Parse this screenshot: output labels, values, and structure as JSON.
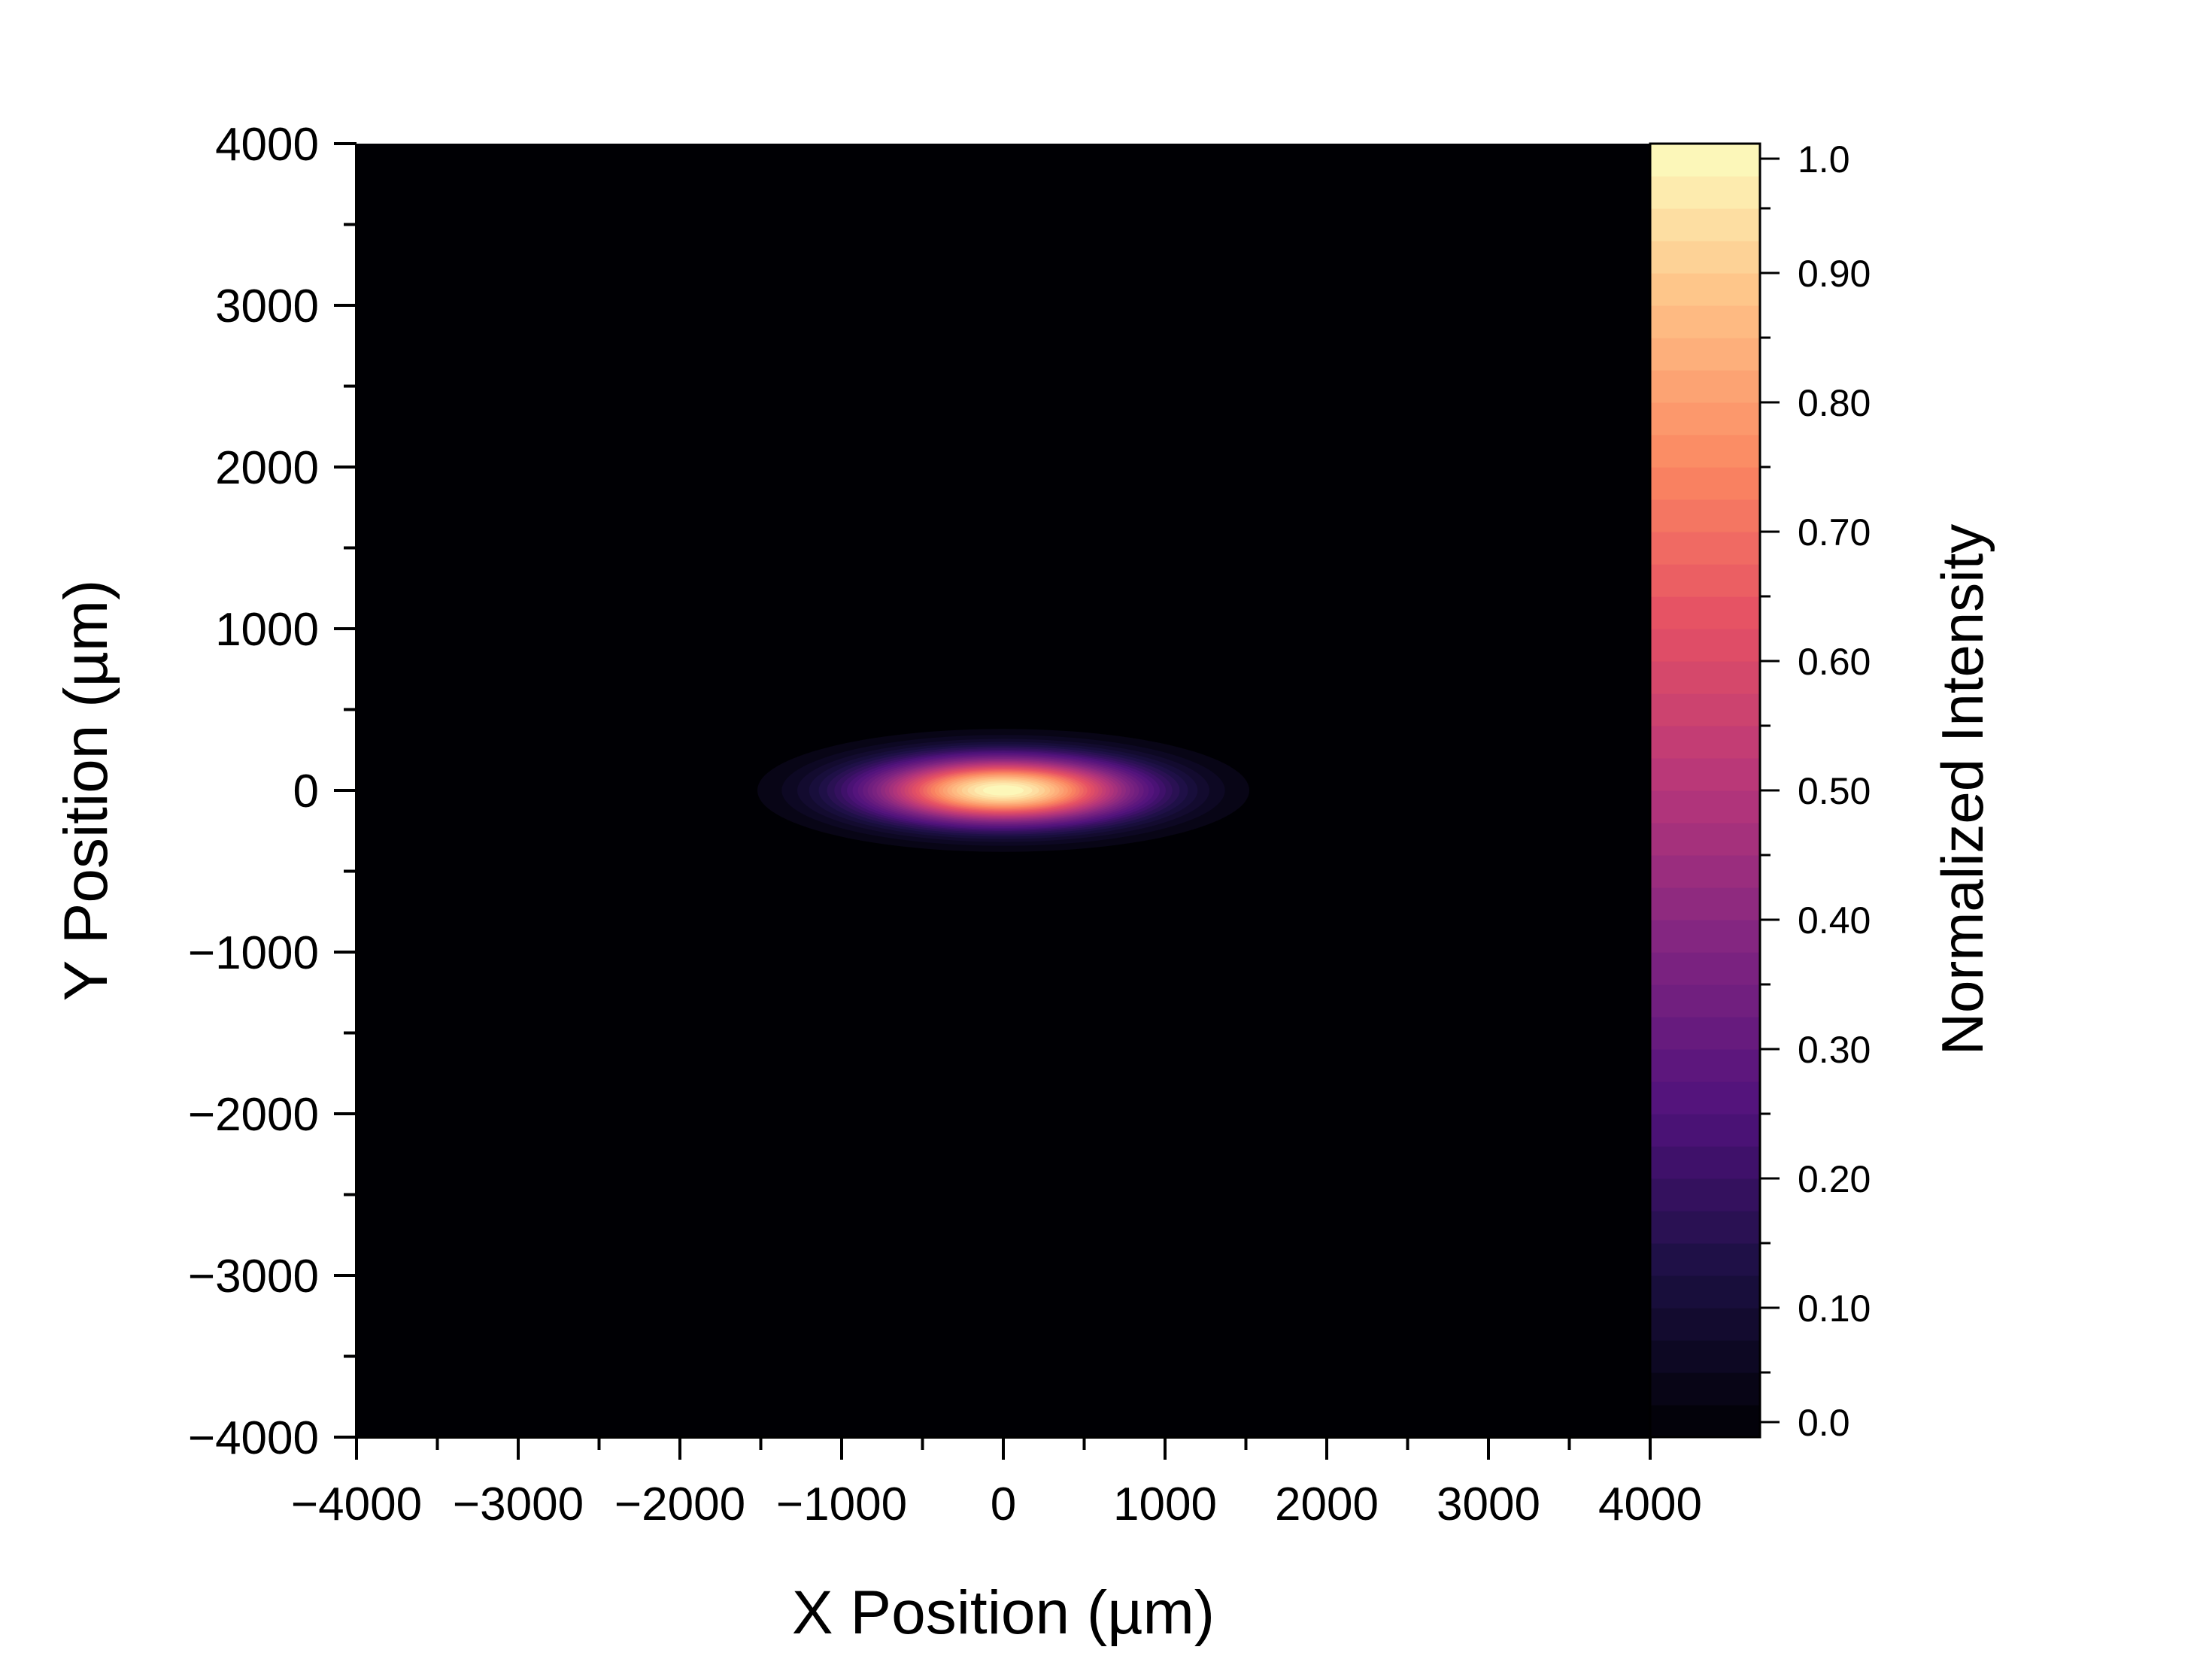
{
  "chart_data": {
    "type": "heatmap",
    "title": "",
    "xlabel": "X Position (µm)",
    "ylabel": "Y Position (µm)",
    "xlim": [
      -4000,
      4000
    ],
    "ylim": [
      -4000,
      4000
    ],
    "x_ticks": [
      "−4000",
      "−3000",
      "−2000",
      "−1000",
      "0",
      "1000",
      "2000",
      "3000",
      "4000"
    ],
    "y_ticks": [
      "4000",
      "3000",
      "2000",
      "1000",
      "0",
      "−1000",
      "−2000",
      "−3000",
      "−4000"
    ],
    "grid": false,
    "colormap": "magma",
    "colorbar": {
      "label": "Normalized Intensity",
      "range": [
        0.0,
        1.0
      ],
      "ticks": [
        "0.0",
        "0.10",
        "0.20",
        "0.30",
        "0.40",
        "0.50",
        "0.60",
        "0.70",
        "0.80",
        "0.90",
        "1.0"
      ],
      "levels": 40
    },
    "distribution": {
      "shape": "gaussian ellipse",
      "center_x": 0,
      "center_y": 0,
      "sigma_x": 560,
      "sigma_y": 140,
      "peak": 1.0
    },
    "colors": {
      "background": "#000004",
      "peak": "#fcfdbf"
    }
  }
}
